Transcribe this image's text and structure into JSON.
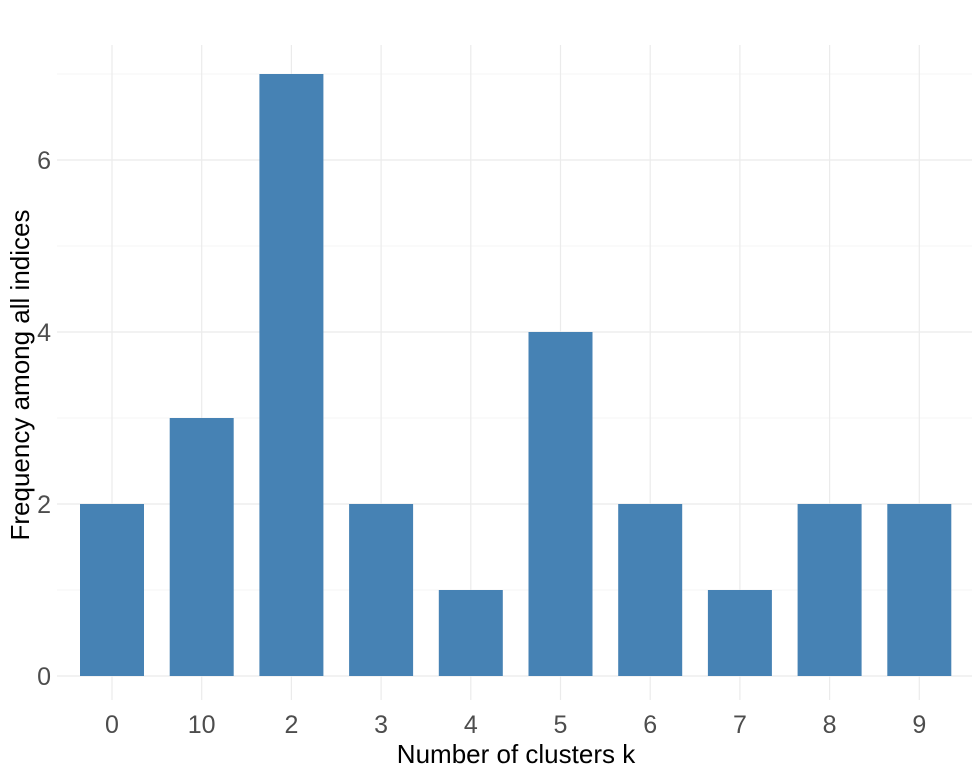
{
  "chart_data": {
    "type": "bar",
    "title": "",
    "xlabel": "Number of clusters k",
    "ylabel": "Frequency among all indices",
    "categories": [
      "0",
      "10",
      "2",
      "3",
      "4",
      "5",
      "6",
      "7",
      "8",
      "9"
    ],
    "values": [
      2,
      3,
      7,
      2,
      1,
      4,
      2,
      1,
      2,
      2
    ],
    "y_ticks": [
      0,
      2,
      4,
      6
    ],
    "ylim": [
      0,
      7
    ],
    "grid": true,
    "legend": "none",
    "bar_color": "#4682b4",
    "grid_color": "#ebebeb",
    "tick_label_color": "#4d4d4d",
    "background": "#ffffff"
  }
}
